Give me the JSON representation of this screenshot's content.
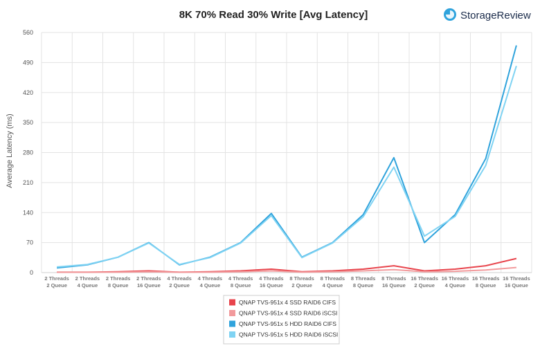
{
  "brand": {
    "name": "StorageReview"
  },
  "chart_data": {
    "type": "line",
    "title": "8K 70% Read 30% Write [Avg Latency]",
    "ylabel": "Average Latency (ms)",
    "xlabel": "",
    "ylim": [
      0,
      560
    ],
    "yticks": [
      0,
      70,
      140,
      210,
      280,
      350,
      420,
      490,
      560
    ],
    "grid": true,
    "legend_position": "bottom-center",
    "categories": [
      [
        "2 Threads",
        "2 Queue"
      ],
      [
        "2 Threads",
        "4 Queue"
      ],
      [
        "2 Threads",
        "8 Queue"
      ],
      [
        "2 Threads",
        "16 Queue"
      ],
      [
        "4 Threads",
        "2 Queue"
      ],
      [
        "4 Threads",
        "4 Queue"
      ],
      [
        "4 Threads",
        "8 Queue"
      ],
      [
        "4 Threads",
        "16 Queue"
      ],
      [
        "8 Threads",
        "2 Queue"
      ],
      [
        "8 Threads",
        "4 Queue"
      ],
      [
        "8 Threads",
        "8 Queue"
      ],
      [
        "8 Threads",
        "16 Queue"
      ],
      [
        "16 Threads",
        "2 Queue"
      ],
      [
        "16 Threads",
        "4 Queue"
      ],
      [
        "16 Threads",
        "8 Queue"
      ],
      [
        "16 Threads",
        "16 Queue"
      ]
    ],
    "series": [
      {
        "name": "QNAP TVS-951x 4 SSD RAID6 CIFS",
        "color": "#e8444c",
        "values": [
          1,
          1,
          2,
          4,
          1,
          2,
          4,
          8,
          2,
          4,
          8,
          16,
          4,
          8,
          16,
          33
        ]
      },
      {
        "name": "QNAP TVS-951x 4 SSD RAID6 iSCSI",
        "color": "#f29a9c",
        "values": [
          1,
          1,
          1,
          2,
          1,
          1,
          2,
          4,
          1,
          2,
          4,
          7,
          2,
          3,
          6,
          12
        ]
      },
      {
        "name": "QNAP TVS-951x 5 HDD RAID6 CIFS",
        "color": "#2fa3dc",
        "values": [
          11,
          18,
          36,
          70,
          18,
          36,
          70,
          138,
          36,
          70,
          135,
          268,
          70,
          135,
          266,
          530
        ]
      },
      {
        "name": "QNAP TVS-951x 5 HDD RAID6 iSCSI",
        "color": "#7fd3f3",
        "values": [
          13,
          19,
          36,
          69,
          19,
          35,
          69,
          133,
          35,
          69,
          130,
          246,
          85,
          131,
          250,
          482
        ]
      }
    ]
  }
}
